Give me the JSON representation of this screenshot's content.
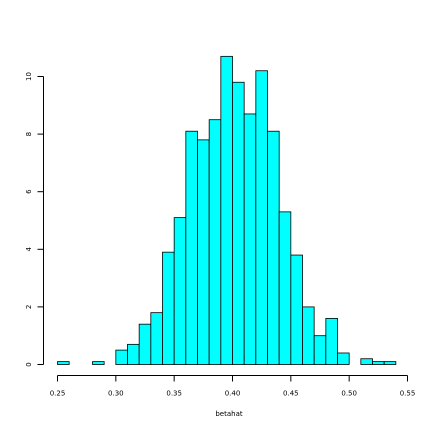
{
  "chart_data": {
    "type": "bar",
    "title": "",
    "xlabel": "betahat",
    "ylabel": "",
    "xlim": [
      0.25,
      0.55
    ],
    "ylim": [
      0,
      10
    ],
    "bin_width": 0.01,
    "bins": [
      {
        "x0": 0.25,
        "x1": 0.26,
        "value": 0.1
      },
      {
        "x0": 0.26,
        "x1": 0.27,
        "value": 0.0
      },
      {
        "x0": 0.27,
        "x1": 0.28,
        "value": 0.0
      },
      {
        "x0": 0.28,
        "x1": 0.29,
        "value": 0.1
      },
      {
        "x0": 0.29,
        "x1": 0.3,
        "value": 0.0
      },
      {
        "x0": 0.3,
        "x1": 0.31,
        "value": 0.5
      },
      {
        "x0": 0.31,
        "x1": 0.32,
        "value": 0.7
      },
      {
        "x0": 0.32,
        "x1": 0.33,
        "value": 1.4
      },
      {
        "x0": 0.33,
        "x1": 0.34,
        "value": 1.8
      },
      {
        "x0": 0.34,
        "x1": 0.35,
        "value": 3.9
      },
      {
        "x0": 0.35,
        "x1": 0.36,
        "value": 5.1
      },
      {
        "x0": 0.36,
        "x1": 0.37,
        "value": 8.1
      },
      {
        "x0": 0.37,
        "x1": 0.38,
        "value": 7.8
      },
      {
        "x0": 0.38,
        "x1": 0.39,
        "value": 8.5
      },
      {
        "x0": 0.39,
        "x1": 0.4,
        "value": 10.7
      },
      {
        "x0": 0.4,
        "x1": 0.41,
        "value": 9.8
      },
      {
        "x0": 0.41,
        "x1": 0.42,
        "value": 8.7
      },
      {
        "x0": 0.42,
        "x1": 0.43,
        "value": 10.2
      },
      {
        "x0": 0.43,
        "x1": 0.44,
        "value": 8.1
      },
      {
        "x0": 0.44,
        "x1": 0.45,
        "value": 5.3
      },
      {
        "x0": 0.45,
        "x1": 0.46,
        "value": 3.8
      },
      {
        "x0": 0.46,
        "x1": 0.47,
        "value": 2.0
      },
      {
        "x0": 0.47,
        "x1": 0.48,
        "value": 1.0
      },
      {
        "x0": 0.48,
        "x1": 0.49,
        "value": 1.6
      },
      {
        "x0": 0.49,
        "x1": 0.5,
        "value": 0.4
      },
      {
        "x0": 0.5,
        "x1": 0.51,
        "value": 0.0
      },
      {
        "x0": 0.51,
        "x1": 0.52,
        "value": 0.2
      },
      {
        "x0": 0.52,
        "x1": 0.53,
        "value": 0.1
      },
      {
        "x0": 0.53,
        "x1": 0.54,
        "value": 0.1
      }
    ],
    "x_ticks": [
      "0.25",
      "0.30",
      "0.35",
      "0.40",
      "0.45",
      "0.50",
      "0.55"
    ],
    "y_ticks": [
      "0",
      "2",
      "4",
      "6",
      "8",
      "10"
    ],
    "bar_color": "#00ffff",
    "grid": false,
    "legend": "none"
  }
}
